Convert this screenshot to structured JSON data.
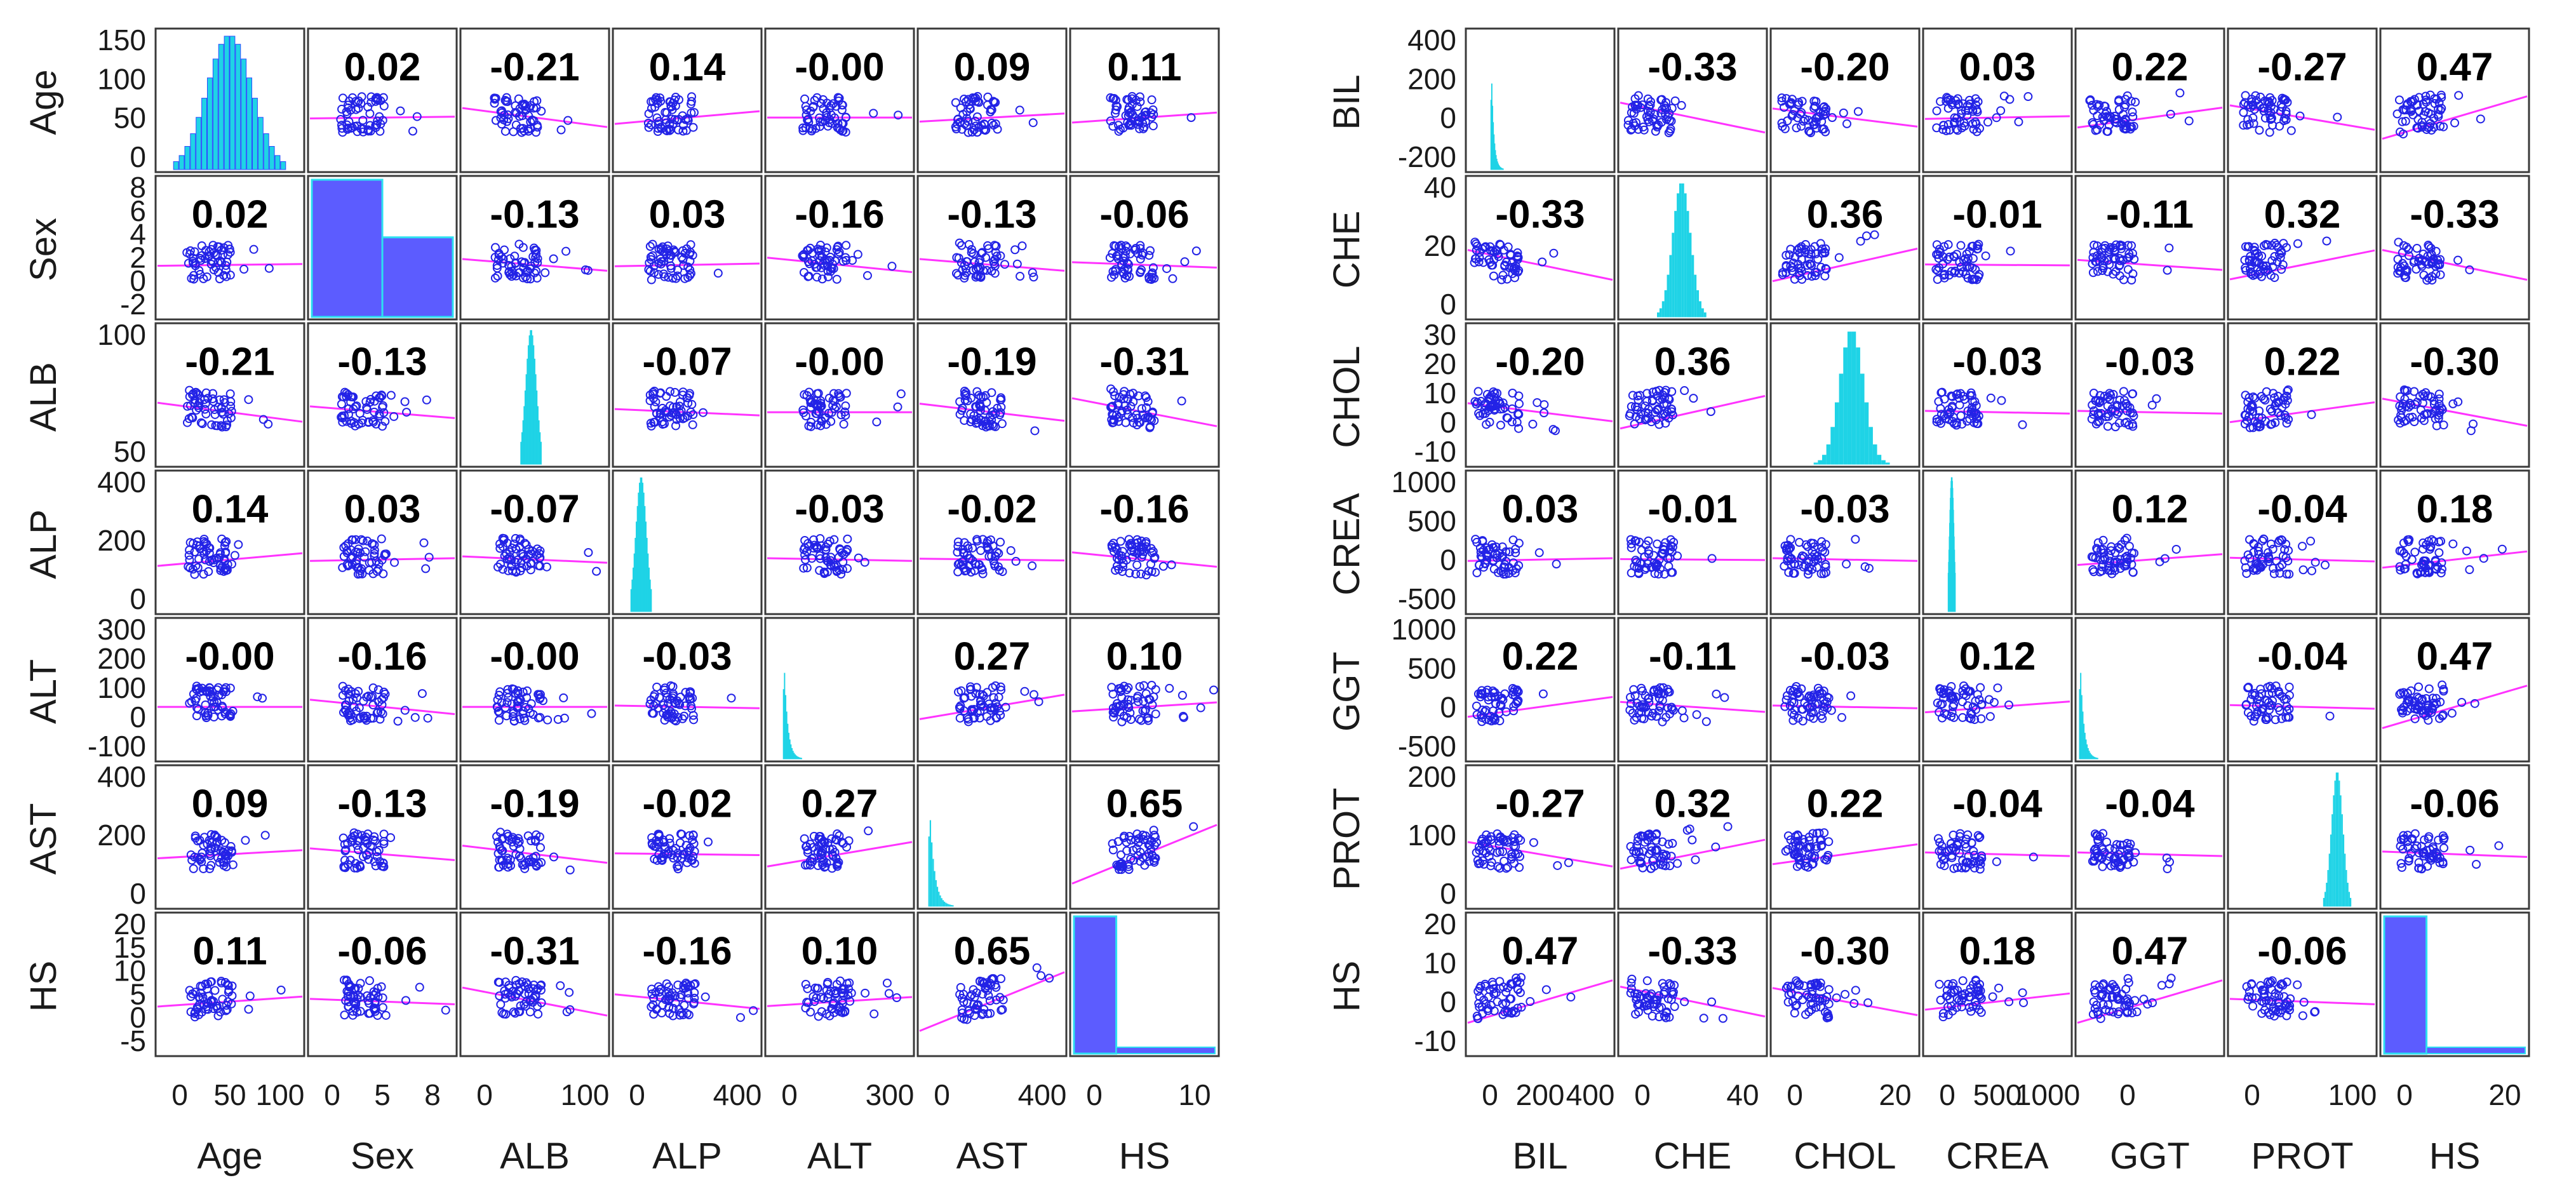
{
  "chart_data": [
    {
      "type": "scatter-matrix",
      "title": "",
      "variables": [
        "Age",
        "Sex",
        "ALB",
        "ALP",
        "ALT",
        "AST",
        "HS"
      ],
      "colors": {
        "points": "#2323e6",
        "fit_line": "#ff33ff",
        "histogram_bar": "#1fd3e6",
        "histogram_hs": "#5c5cff"
      },
      "y_ticks": {
        "Age": [
          0,
          50,
          100,
          150
        ],
        "Sex": [
          -2,
          0,
          2,
          4,
          6,
          8
        ],
        "ALB": [
          50,
          100
        ],
        "ALP": [
          0,
          200,
          400
        ],
        "ALT": [
          -100,
          0,
          100,
          200,
          300
        ],
        "AST": [
          0,
          200,
          400
        ],
        "HS": [
          -5,
          0,
          5,
          10,
          15,
          20
        ]
      },
      "x_ticks": {
        "Age": [
          "0",
          "50",
          "100"
        ],
        "Sex": [
          "0",
          "5",
          "8"
        ],
        "ALB": [
          "0",
          "100"
        ],
        "ALP": [
          "0",
          "400"
        ],
        "ALT": [
          "0",
          "300"
        ],
        "AST": [
          "0",
          "400"
        ],
        "HS": [
          "0",
          "10"
        ]
      },
      "correlations": [
        [
          null,
          0.02,
          -0.21,
          0.14,
          -0.0,
          0.09,
          0.11
        ],
        [
          0.02,
          null,
          -0.13,
          0.03,
          -0.16,
          -0.13,
          -0.06
        ],
        [
          -0.21,
          -0.13,
          null,
          -0.07,
          -0.0,
          -0.19,
          -0.31
        ],
        [
          0.14,
          0.03,
          -0.07,
          null,
          -0.03,
          -0.02,
          -0.16
        ],
        [
          -0.0,
          -0.16,
          -0.0,
          -0.03,
          null,
          0.27,
          0.1
        ],
        [
          0.09,
          -0.13,
          -0.19,
          -0.02,
          0.27,
          null,
          0.65
        ],
        [
          0.11,
          -0.06,
          -0.31,
          -0.16,
          0.1,
          0.65,
          null
        ]
      ],
      "correlation_labels": [
        [
          null,
          "0.02",
          "-0.21",
          "0.14",
          "-0.00",
          "0.09",
          "0.11"
        ],
        [
          "0.02",
          null,
          "-0.13",
          "0.03",
          "-0.16",
          "-0.13",
          "-0.06"
        ],
        [
          "-0.21",
          "-0.13",
          null,
          "-0.07",
          "-0.00",
          "-0.19",
          "-0.31"
        ],
        [
          "0.14",
          "0.03",
          "-0.07",
          null,
          "-0.03",
          "-0.02",
          "-0.16"
        ],
        [
          "-0.00",
          "-0.16",
          "-0.00",
          "-0.03",
          null,
          "0.27",
          "0.10"
        ],
        [
          "0.09",
          "-0.13",
          "-0.19",
          "-0.02",
          "0.27",
          null,
          "0.65"
        ],
        [
          "0.11",
          "-0.06",
          "-0.31",
          "-0.16",
          "0.10",
          "0.65",
          null
        ]
      ]
    },
    {
      "type": "scatter-matrix",
      "title": "",
      "variables": [
        "BIL",
        "CHE",
        "CHOL",
        "CREA",
        "GGT",
        "PROT",
        "HS"
      ],
      "colors": {
        "points": "#2323e6",
        "fit_line": "#ff33ff",
        "histogram_bar": "#1fd3e6",
        "histogram_hs": "#5c5cff"
      },
      "y_ticks": {
        "BIL": [
          -200,
          0,
          200,
          400
        ],
        "CHE": [
          0,
          20,
          40
        ],
        "CHOL": [
          -10,
          0,
          10,
          20,
          30
        ],
        "CREA": [
          -500,
          0,
          500,
          1000
        ],
        "GGT": [
          -500,
          0,
          500,
          1000
        ],
        "PROT": [
          0,
          100,
          200
        ],
        "HS": [
          -10,
          0,
          10,
          20
        ]
      },
      "x_ticks": {
        "BIL": [
          "0",
          "200",
          "400"
        ],
        "CHE": [
          "0",
          "40"
        ],
        "CHOL": [
          "0",
          "20"
        ],
        "CREA": [
          "0",
          "500",
          "1000"
        ],
        "GGT": [
          "0"
        ],
        "PROT": [
          "0",
          "100"
        ],
        "HS": [
          "0",
          "20"
        ]
      },
      "correlations": [
        [
          null,
          -0.33,
          -0.2,
          0.03,
          0.22,
          -0.27,
          0.47
        ],
        [
          -0.33,
          null,
          0.36,
          -0.01,
          -0.11,
          0.32,
          -0.33
        ],
        [
          -0.2,
          0.36,
          null,
          -0.03,
          -0.03,
          0.22,
          -0.3
        ],
        [
          0.03,
          -0.01,
          -0.03,
          null,
          0.12,
          -0.04,
          0.18
        ],
        [
          0.22,
          -0.11,
          -0.03,
          0.12,
          null,
          -0.04,
          0.47
        ],
        [
          -0.27,
          0.32,
          0.22,
          -0.04,
          -0.04,
          null,
          -0.06
        ],
        [
          0.47,
          -0.33,
          -0.3,
          0.18,
          0.47,
          -0.06,
          null
        ]
      ],
      "correlation_labels": [
        [
          null,
          "-0.33",
          "-0.20",
          "0.03",
          "0.22",
          "-0.27",
          "0.47"
        ],
        [
          "-0.33",
          null,
          "0.36",
          "-0.01",
          "-0.11",
          "0.32",
          "-0.33"
        ],
        [
          "-0.20",
          "0.36",
          null,
          "-0.03",
          "-0.03",
          "0.22",
          "-0.30"
        ],
        [
          "0.03",
          "-0.01",
          "-0.03",
          null,
          "0.12",
          "-0.04",
          "0.18"
        ],
        [
          "0.22",
          "-0.11",
          "-0.03",
          "0.12",
          null,
          "-0.04",
          "0.47"
        ],
        [
          "-0.27",
          "0.32",
          "0.22",
          "-0.04",
          "-0.04",
          null,
          "-0.06"
        ],
        [
          "0.47",
          "-0.33",
          "-0.30",
          "0.18",
          "0.47",
          "-0.06",
          null
        ]
      ]
    }
  ]
}
